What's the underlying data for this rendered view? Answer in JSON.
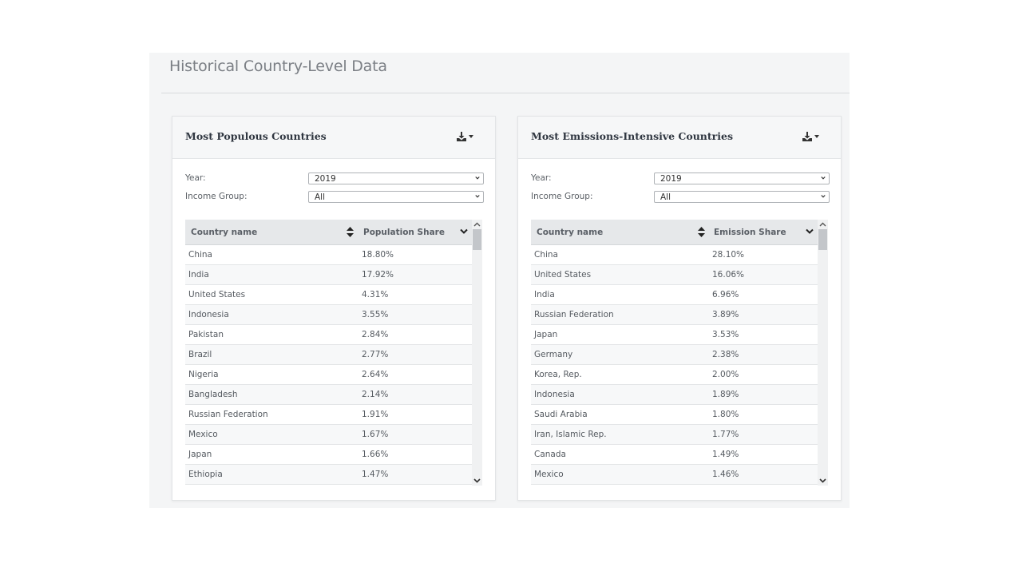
{
  "page": {
    "title": "Historical Country-Level Data"
  },
  "panels": [
    {
      "title": "Most Populous Countries",
      "download_icon": "download-icon",
      "filters": {
        "year_label": "Year:",
        "year_value": "2019",
        "income_label": "Income Group:",
        "income_value": "All"
      },
      "columns": [
        "Country name",
        "Population Share"
      ],
      "rows": [
        [
          "China",
          "18.80%"
        ],
        [
          "India",
          "17.92%"
        ],
        [
          "United States",
          "4.31%"
        ],
        [
          "Indonesia",
          "3.55%"
        ],
        [
          "Pakistan",
          "2.84%"
        ],
        [
          "Brazil",
          "2.77%"
        ],
        [
          "Nigeria",
          "2.64%"
        ],
        [
          "Bangladesh",
          "2.14%"
        ],
        [
          "Russian Federation",
          "1.91%"
        ],
        [
          "Mexico",
          "1.67%"
        ],
        [
          "Japan",
          "1.66%"
        ],
        [
          "Ethiopia",
          "1.47%"
        ]
      ]
    },
    {
      "title": "Most Emissions-Intensive Countries",
      "download_icon": "download-icon",
      "filters": {
        "year_label": "Year:",
        "year_value": "2019",
        "income_label": "Income Group:",
        "income_value": "All"
      },
      "columns": [
        "Country name",
        "Emission Share"
      ],
      "rows": [
        [
          "China",
          "28.10%"
        ],
        [
          "United States",
          "16.06%"
        ],
        [
          "India",
          "6.96%"
        ],
        [
          "Russian Federation",
          "3.89%"
        ],
        [
          "Japan",
          "3.53%"
        ],
        [
          "Germany",
          "2.38%"
        ],
        [
          "Korea, Rep.",
          "2.00%"
        ],
        [
          "Indonesia",
          "1.89%"
        ],
        [
          "Saudi Arabia",
          "1.80%"
        ],
        [
          "Iran, Islamic Rep.",
          "1.77%"
        ],
        [
          "Canada",
          "1.49%"
        ],
        [
          "Mexico",
          "1.46%"
        ]
      ]
    }
  ]
}
